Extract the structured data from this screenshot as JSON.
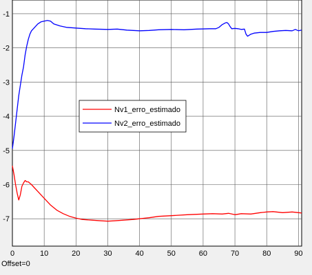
{
  "chart_data": {
    "type": "line",
    "title": "",
    "xlabel": "",
    "ylabel": "",
    "xlim": [
      0,
      91
    ],
    "ylim": [
      -7.8,
      -0.6
    ],
    "xticks": [
      0,
      10,
      20,
      30,
      40,
      50,
      60,
      70,
      80,
      90
    ],
    "yticks": [
      -1,
      -2,
      -3,
      -4,
      -5,
      -6,
      -7
    ],
    "grid": true,
    "legend_position": "center-left",
    "series": [
      {
        "name": "Nv1_erro_estimado",
        "color": "#ff0000",
        "points": [
          [
            0,
            -5.45
          ],
          [
            0.5,
            -5.7
          ],
          [
            1,
            -6.0
          ],
          [
            1.5,
            -6.25
          ],
          [
            2,
            -6.45
          ],
          [
            2.5,
            -6.3
          ],
          [
            3,
            -6.05
          ],
          [
            3.5,
            -5.95
          ],
          [
            4,
            -5.88
          ],
          [
            4.5,
            -5.92
          ],
          [
            5,
            -5.92
          ],
          [
            6,
            -6.0
          ],
          [
            7,
            -6.1
          ],
          [
            8,
            -6.2
          ],
          [
            9,
            -6.3
          ],
          [
            10,
            -6.4
          ],
          [
            12,
            -6.6
          ],
          [
            14,
            -6.75
          ],
          [
            16,
            -6.85
          ],
          [
            18,
            -6.93
          ],
          [
            20,
            -6.98
          ],
          [
            22,
            -7.02
          ],
          [
            25,
            -7.04
          ],
          [
            28,
            -7.06
          ],
          [
            30,
            -7.07
          ],
          [
            32,
            -7.06
          ],
          [
            35,
            -7.04
          ],
          [
            38,
            -7.02
          ],
          [
            40,
            -7.0
          ],
          [
            43,
            -6.97
          ],
          [
            46,
            -6.93
          ],
          [
            50,
            -6.91
          ],
          [
            55,
            -6.88
          ],
          [
            60,
            -6.86
          ],
          [
            63,
            -6.85
          ],
          [
            66,
            -6.86
          ],
          [
            68,
            -6.84
          ],
          [
            70,
            -6.88
          ],
          [
            72,
            -6.85
          ],
          [
            75,
            -6.86
          ],
          [
            78,
            -6.82
          ],
          [
            80,
            -6.8
          ],
          [
            82,
            -6.79
          ],
          [
            85,
            -6.82
          ],
          [
            88,
            -6.8
          ],
          [
            91,
            -6.83
          ]
        ]
      },
      {
        "name": "Nv2_erro_estimado",
        "color": "#0000ff",
        "points": [
          [
            0,
            -4.95
          ],
          [
            0.5,
            -4.6
          ],
          [
            1,
            -4.2
          ],
          [
            1.5,
            -3.8
          ],
          [
            2,
            -3.4
          ],
          [
            2.5,
            -3.1
          ],
          [
            3,
            -2.8
          ],
          [
            3.5,
            -2.55
          ],
          [
            4,
            -2.2
          ],
          [
            4.5,
            -1.95
          ],
          [
            5,
            -1.75
          ],
          [
            5.5,
            -1.6
          ],
          [
            6,
            -1.5
          ],
          [
            7,
            -1.4
          ],
          [
            8,
            -1.3
          ],
          [
            9,
            -1.24
          ],
          [
            10,
            -1.22
          ],
          [
            11,
            -1.2
          ],
          [
            12,
            -1.22
          ],
          [
            13,
            -1.3
          ],
          [
            14,
            -1.33
          ],
          [
            15,
            -1.36
          ],
          [
            17,
            -1.4
          ],
          [
            20,
            -1.42
          ],
          [
            23,
            -1.44
          ],
          [
            26,
            -1.45
          ],
          [
            30,
            -1.46
          ],
          [
            33,
            -1.45
          ],
          [
            36,
            -1.48
          ],
          [
            40,
            -1.5
          ],
          [
            43,
            -1.49
          ],
          [
            46,
            -1.47
          ],
          [
            50,
            -1.46
          ],
          [
            54,
            -1.47
          ],
          [
            58,
            -1.45
          ],
          [
            62,
            -1.44
          ],
          [
            64,
            -1.44
          ],
          [
            65,
            -1.4
          ],
          [
            66,
            -1.32
          ],
          [
            67,
            -1.27
          ],
          [
            67.5,
            -1.26
          ],
          [
            68,
            -1.3
          ],
          [
            68.5,
            -1.38
          ],
          [
            69,
            -1.44
          ],
          [
            70,
            -1.43
          ],
          [
            71,
            -1.44
          ],
          [
            72,
            -1.46
          ],
          [
            73,
            -1.45
          ],
          [
            73.5,
            -1.6
          ],
          [
            74,
            -1.66
          ],
          [
            75,
            -1.6
          ],
          [
            76,
            -1.57
          ],
          [
            78,
            -1.55
          ],
          [
            80,
            -1.55
          ],
          [
            82,
            -1.52
          ],
          [
            84,
            -1.5
          ],
          [
            86,
            -1.49
          ],
          [
            88,
            -1.5
          ],
          [
            89,
            -1.46
          ],
          [
            90,
            -1.5
          ],
          [
            91,
            -1.48
          ]
        ]
      }
    ]
  },
  "offset_label": "Offset=0"
}
